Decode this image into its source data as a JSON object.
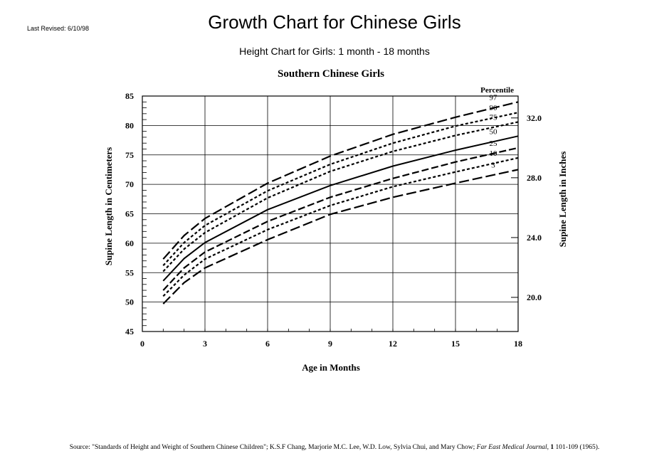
{
  "header": {
    "last_revised": "Last Revised: 6/10/98",
    "title": "Growth Chart for Chinese Girls",
    "subtitle": "Height Chart for Girls: 1 month - 18 months"
  },
  "footer": {
    "source_prefix": "Source: \"Standards of Height and Weight of Southern Chinese Children\"; K.S.F Chang, Marjorie M.C. Lee, W.D. Low, Sylvia Chui, and Mary Chow;",
    "journal": "Far East Medical Journal",
    "volume": "1",
    "pages": "101-109 (1965)."
  },
  "chart_data": {
    "type": "line",
    "title": "Southern Chinese Girls",
    "xlabel": "Age in Months",
    "ylabel": "Supine Length in Centimeters",
    "ylabel_right": "Supine Length in Inches",
    "legend_title": "Percentile",
    "xlim": [
      0,
      18
    ],
    "ylim": [
      45,
      85
    ],
    "x_ticks": [
      0,
      3,
      6,
      9,
      12,
      15,
      18
    ],
    "y_ticks": [
      45,
      50,
      55,
      60,
      65,
      70,
      75,
      80,
      85
    ],
    "right_ticks_inches": [
      20.0,
      24.0,
      28.0,
      32.0
    ],
    "right_tick_labels": [
      "20.0",
      "24.0",
      "28.0",
      "32.0"
    ],
    "grid": true,
    "x": [
      1,
      2,
      3,
      6,
      9,
      12,
      15,
      18
    ],
    "series": [
      {
        "name": "97",
        "dash": "long",
        "values": [
          57.3,
          61.3,
          64.2,
          70.2,
          74.8,
          78.5,
          81.4,
          84.0
        ]
      },
      {
        "name": "90",
        "dash": "short",
        "values": [
          56.2,
          60.1,
          63.0,
          68.9,
          73.4,
          77.0,
          79.9,
          82.2
        ]
      },
      {
        "name": "75",
        "dash": "short",
        "values": [
          55.2,
          59.0,
          61.8,
          67.7,
          72.2,
          75.6,
          78.3,
          80.6
        ]
      },
      {
        "name": "50",
        "dash": "medium",
        "values": [
          53.6,
          57.4,
          60.1,
          65.7,
          69.8,
          73.1,
          75.8,
          78.2
        ]
      },
      {
        "name": "25",
        "dash": "medium",
        "values": [
          52.0,
          55.8,
          58.5,
          63.7,
          67.8,
          71.0,
          73.8,
          76.2
        ]
      },
      {
        "name": "10",
        "dash": "short",
        "values": [
          51.0,
          54.6,
          57.3,
          62.3,
          66.4,
          69.6,
          72.1,
          74.5
        ]
      },
      {
        "name": "3",
        "dash": "long",
        "values": [
          49.7,
          53.3,
          55.8,
          60.6,
          64.9,
          67.8,
          70.2,
          72.5
        ]
      }
    ]
  }
}
